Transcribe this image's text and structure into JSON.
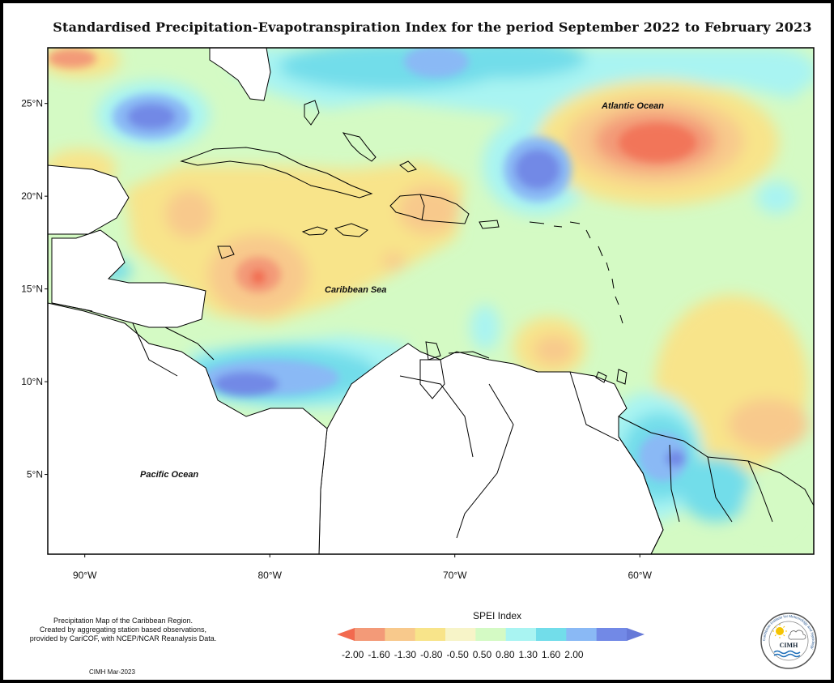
{
  "title": "Standardised Precipitation-Evapotranspiration Index for the period September 2022 to February 2023",
  "map": {
    "lon_range": [
      -92,
      -50.6
    ],
    "lat_range": [
      0.7,
      28
    ],
    "lat_ticks": [
      {
        "label": "25°N",
        "value": 25
      },
      {
        "label": "20°N",
        "value": 20
      },
      {
        "label": "15°N",
        "value": 15
      },
      {
        "label": "10°N",
        "value": 10
      },
      {
        "label": "5°N",
        "value": 5
      }
    ],
    "lon_ticks": [
      {
        "label": "90°W",
        "value": -90
      },
      {
        "label": "80°W",
        "value": -80
      },
      {
        "label": "70°W",
        "value": -70
      },
      {
        "label": "60°W",
        "value": -60
      }
    ],
    "labels": {
      "atlantic": "Atlantic Ocean",
      "caribbean": "Caribbean Sea",
      "pacific": "Pacific Ocean"
    }
  },
  "legend": {
    "title": "SPEI Index",
    "classes": [
      "-2.00",
      "-1.60",
      "-1.30",
      "-0.80",
      "-0.50",
      "0.50",
      "0.80",
      "1.30",
      "1.60",
      "2.00"
    ],
    "colors": [
      "#f26a4f",
      "#f39a78",
      "#f8c98c",
      "#f8e48a",
      "#f7f4c8",
      "#d4fac4",
      "#a9f4f2",
      "#72ddea",
      "#8ab9f5",
      "#7289e6",
      "#6679d8"
    ]
  },
  "footnote": {
    "line1": "Precipitation Map of the Caribbean Region.",
    "line2": "Created by aggregating station based observations,",
    "line3": "provided by CariCOF, with NCEP/NCAR Reanalysis Data."
  },
  "credit": "CIMH Mar-2023",
  "logo": {
    "name": "CIMH",
    "ring_text": "Caribbean Institute for Meteorology and Hydrology"
  }
}
